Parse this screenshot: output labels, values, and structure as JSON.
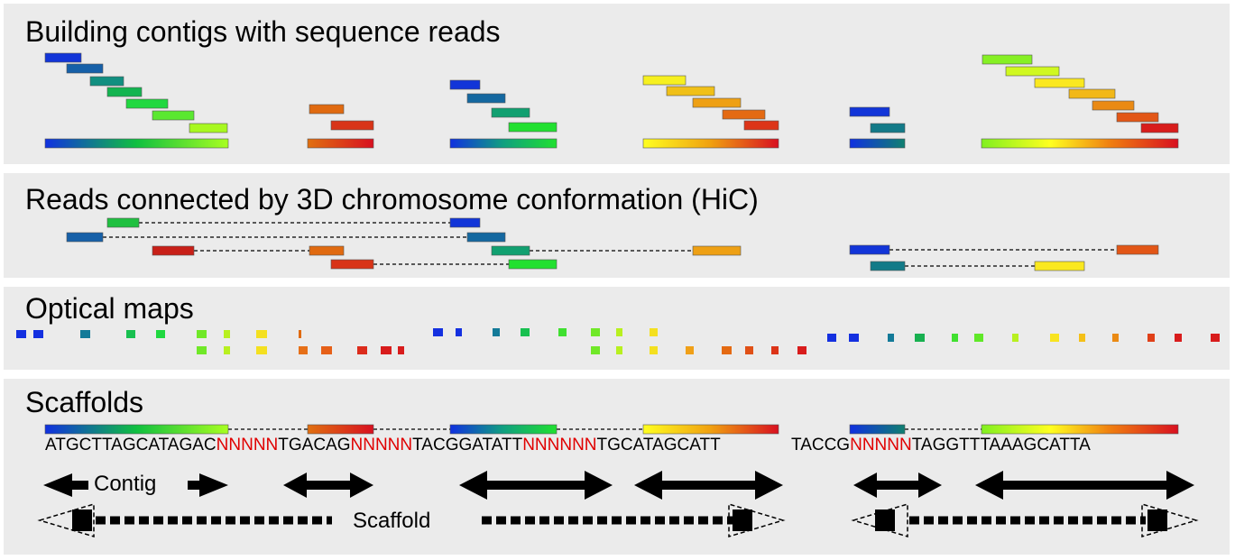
{
  "panels": {
    "contigs_title": "Building contigs with sequence reads",
    "hic_title": "Reads connected by 3D chromosome conformation (HiC)",
    "optical_title": "Optical maps",
    "scaffolds_title": "Scaffolds"
  },
  "sequence": {
    "s1": "ATGCTTAGCATAGAC",
    "n1": "NNNNN",
    "s2": "TGACAG",
    "n2": "NNNNN",
    "s3": "TACGGATATT",
    "n3": "NNNNNN",
    "s4": "TGCATAGCATT",
    "s5": "TACCG",
    "n4": "NNNNN",
    "s6": "TAGGTTTAAAGCATTA"
  },
  "legend": {
    "contig_label": "Contig",
    "scaffold_label": "Scaffold"
  },
  "colors": {
    "gap_n": "#e00000",
    "panel_bg": "#ebebeb",
    "arrow": "#000000"
  }
}
